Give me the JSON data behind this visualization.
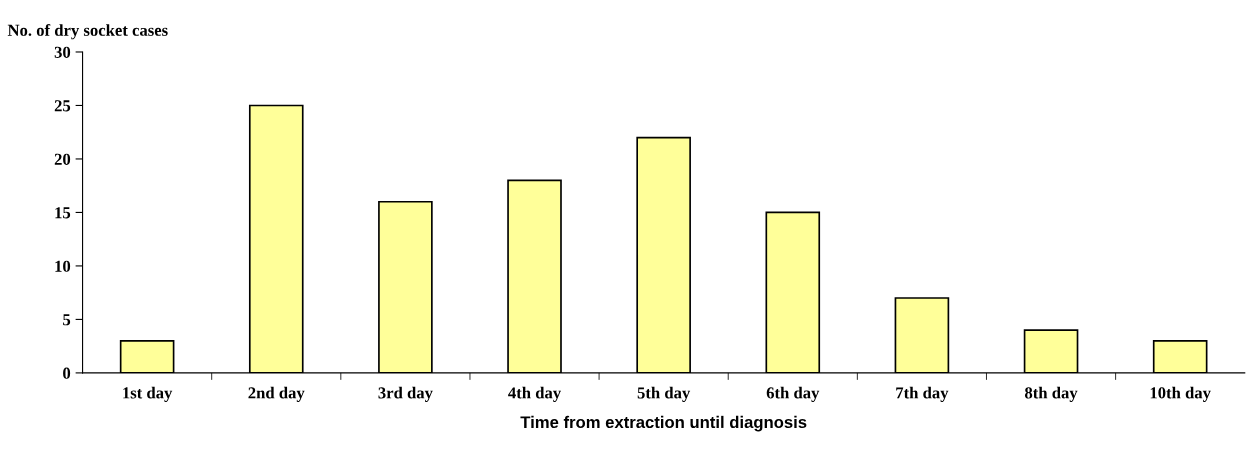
{
  "chart_data": {
    "type": "bar",
    "ylabel": "No. of dry socket cases",
    "xlabel": "Time from extraction until diagnosis",
    "categories": [
      "1st day",
      "2nd day",
      "3rd day",
      "4th day",
      "5th day",
      "6th day",
      "7th day",
      "8th day",
      "10th day"
    ],
    "values": [
      3,
      25,
      16,
      18,
      22,
      15,
      7,
      4,
      3
    ],
    "color": "#ffff99",
    "ylim": [
      0,
      30
    ],
    "yticks": [
      0,
      5,
      10,
      15,
      20,
      25,
      30
    ],
    "grid": false,
    "legend": false
  }
}
